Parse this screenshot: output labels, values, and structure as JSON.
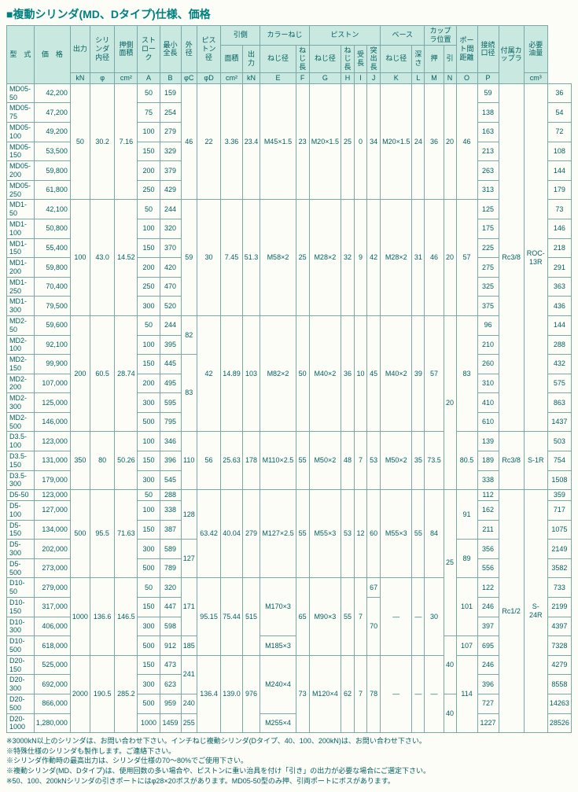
{
  "title": "■複動シリンダ(MD、Dタイプ)仕様、価格",
  "headers": {
    "r1": [
      "型　式",
      "価　格",
      "出力",
      "シリンダ内径",
      "押側面積",
      "ストローク",
      "最小全長",
      "外径",
      "ピストン径",
      "引側",
      "カラーねじ",
      "ピストン",
      "ベース",
      "カップラ位置",
      "ポート間距離",
      "接続口径",
      "付属カップラ",
      "必要油量"
    ],
    "r1sub": [
      "面積",
      "出力",
      "ねじ径",
      "ねじ長",
      "ねじ径",
      "ねじ長",
      "受長",
      "突出長",
      "ねじ径",
      "深さ",
      "押",
      "引"
    ],
    "r2": [
      "kN",
      "φ",
      "cm²",
      "A",
      "B",
      "φC",
      "φD",
      "cm²",
      "kN",
      "E",
      "F",
      "G",
      "H",
      "I",
      "J",
      "K",
      "L",
      "M",
      "N",
      "O",
      "P",
      "cm³"
    ]
  },
  "rows": [
    [
      "MD05-50",
      "42,200",
      "50",
      "30.2",
      "7.16",
      "50",
      "159",
      "46",
      "22",
      "3.36",
      "23.4",
      "M45×1.5",
      "23",
      "M20×1.5",
      "25",
      "0",
      "34",
      "M20×1.5",
      "24",
      "36",
      "20",
      "46",
      "59",
      "Rc3/8",
      "ROC-13R",
      "36"
    ],
    [
      "MD05-75",
      "47,200",
      "",
      "",
      "",
      "75",
      "254",
      "",
      "",
      "",
      "",
      "",
      "",
      "",
      "",
      "",
      "",
      "",
      "",
      "",
      "",
      "",
      "138",
      "",
      "",
      "54"
    ],
    [
      "MD05-100",
      "49,200",
      "",
      "",
      "",
      "100",
      "279",
      "",
      "",
      "",
      "",
      "",
      "",
      "",
      "",
      "",
      "",
      "",
      "",
      "",
      "",
      "",
      "163",
      "",
      "",
      "72"
    ],
    [
      "MD05-150",
      "53,500",
      "",
      "",
      "",
      "150",
      "329",
      "",
      "",
      "",
      "",
      "",
      "",
      "",
      "",
      "",
      "",
      "",
      "",
      "",
      "",
      "",
      "213",
      "",
      "",
      "108"
    ],
    [
      "MD05-200",
      "59,800",
      "",
      "",
      "",
      "200",
      "379",
      "",
      "",
      "",
      "",
      "",
      "",
      "",
      "",
      "",
      "",
      "",
      "",
      "",
      "",
      "",
      "263",
      "",
      "",
      "144"
    ],
    [
      "MD05-250",
      "61,800",
      "",
      "",
      "",
      "250",
      "429",
      "",
      "",
      "",
      "",
      "",
      "",
      "",
      "",
      "",
      "",
      "",
      "",
      "",
      "",
      "",
      "313",
      "",
      "",
      "179"
    ],
    [
      "MD1-50",
      "42,100",
      "100",
      "43.0",
      "14.52",
      "50",
      "244",
      "59",
      "30",
      "7.45",
      "51.3",
      "M58×2",
      "25",
      "M28×2",
      "32",
      "9",
      "42",
      "M28×2",
      "31",
      "46",
      "20",
      "57",
      "125",
      "",
      "",
      "73"
    ],
    [
      "MD1-100",
      "50,800",
      "",
      "",
      "",
      "100",
      "320",
      "",
      "",
      "",
      "",
      "",
      "",
      "",
      "",
      "",
      "",
      "",
      "",
      "",
      "",
      "",
      "175",
      "",
      "",
      "146"
    ],
    [
      "MD1-150",
      "55,400",
      "",
      "",
      "",
      "150",
      "370",
      "",
      "",
      "",
      "",
      "",
      "",
      "",
      "",
      "",
      "",
      "",
      "",
      "",
      "",
      "",
      "225",
      "",
      "",
      "218"
    ],
    [
      "MD1-200",
      "59,800",
      "",
      "",
      "",
      "200",
      "420",
      "",
      "",
      "",
      "",
      "",
      "",
      "",
      "",
      "",
      "",
      "",
      "",
      "",
      "",
      "",
      "275",
      "",
      "",
      "291"
    ],
    [
      "MD1-250",
      "70,400",
      "",
      "",
      "",
      "250",
      "470",
      "",
      "",
      "",
      "",
      "",
      "",
      "",
      "",
      "",
      "",
      "",
      "",
      "",
      "",
      "",
      "325",
      "",
      "",
      "363"
    ],
    [
      "MD1-300",
      "79,500",
      "",
      "",
      "",
      "300",
      "520",
      "",
      "",
      "",
      "",
      "",
      "",
      "",
      "",
      "",
      "",
      "",
      "",
      "",
      "",
      "",
      "375",
      "",
      "",
      "436"
    ],
    [
      "MD2-50",
      "59,600",
      "200",
      "60.5",
      "28.74",
      "50",
      "244",
      "82",
      "42",
      "14.89",
      "103",
      "M82×2",
      "50",
      "M40×2",
      "36",
      "10",
      "45",
      "M40×2",
      "39",
      "57",
      "20",
      "83",
      "96",
      "",
      "",
      "144"
    ],
    [
      "MD2-100",
      "92,100",
      "",
      "",
      "",
      "100",
      "395",
      "",
      "",
      "",
      "",
      "",
      "",
      "",
      "",
      "",
      "",
      "",
      "",
      "",
      "",
      "",
      "210",
      "",
      "",
      "288"
    ],
    [
      "MD2-150",
      "99,900",
      "",
      "",
      "",
      "150",
      "445",
      "83",
      "",
      "",
      "",
      "",
      "",
      "",
      "",
      "",
      "",
      "",
      "",
      "",
      "",
      "",
      "260",
      "",
      "",
      "432"
    ],
    [
      "MD2-200",
      "107,000",
      "",
      "",
      "",
      "200",
      "495",
      "",
      "",
      "",
      "",
      "",
      "",
      "",
      "",
      "",
      "",
      "",
      "",
      "",
      "",
      "",
      "310",
      "",
      "",
      "575"
    ],
    [
      "MD2-300",
      "125,000",
      "",
      "",
      "",
      "300",
      "595",
      "",
      "",
      "",
      "",
      "",
      "",
      "",
      "",
      "",
      "",
      "",
      "",
      "",
      "",
      "",
      "410",
      "",
      "",
      "863"
    ],
    [
      "MD2-500",
      "146,000",
      "",
      "",
      "",
      "500",
      "795",
      "",
      "",
      "",
      "",
      "",
      "",
      "",
      "",
      "",
      "",
      "",
      "",
      "",
      "",
      "",
      "610",
      "",
      "",
      "1437"
    ],
    [
      "D3.5-100",
      "123,000",
      "350",
      "80",
      "50.26",
      "100",
      "346",
      "110",
      "56",
      "25.63",
      "178",
      "M110×2.5",
      "55",
      "M50×2",
      "48",
      "7",
      "53",
      "M50×2",
      "35",
      "73.5",
      "",
      "80.5",
      "139",
      "Rc3/8",
      "S-1R",
      "503"
    ],
    [
      "D3.5-150",
      "131,000",
      "",
      "",
      "",
      "150",
      "396",
      "",
      "",
      "",
      "",
      "",
      "",
      "",
      "",
      "",
      "",
      "",
      "",
      "",
      "",
      "",
      "189",
      "",
      "",
      "754"
    ],
    [
      "D3.5-300",
      "179,000",
      "",
      "",
      "",
      "300",
      "545",
      "",
      "",
      "",
      "",
      "",
      "",
      "",
      "",
      "",
      "",
      "",
      "",
      "",
      "",
      "",
      "338",
      "",
      "",
      "1508"
    ],
    [
      "D5-50",
      "123,000",
      "500",
      "95.5",
      "71.63",
      "50",
      "288",
      "128",
      "63.42",
      "40.04",
      "279",
      "M127×2.5",
      "55",
      "M55×3",
      "53",
      "12",
      "60",
      "M55×3",
      "55",
      "84",
      "25",
      "91",
      "112",
      "Rc1/2",
      "S-24R",
      "359"
    ],
    [
      "D5-100",
      "127,000",
      "",
      "",
      "",
      "100",
      "338",
      "",
      "",
      "",
      "",
      "",
      "",
      "",
      "",
      "",
      "",
      "",
      "",
      "",
      "",
      "",
      "162",
      "",
      "",
      "717"
    ],
    [
      "D5-150",
      "134,000",
      "",
      "",
      "",
      "150",
      "387",
      "",
      "",
      "",
      "",
      "",
      "",
      "",
      "",
      "",
      "",
      "",
      "",
      "",
      "",
      "",
      "211",
      "",
      "",
      "1075"
    ],
    [
      "D5-300",
      "202,000",
      "",
      "",
      "",
      "300",
      "589",
      "127",
      "",
      "",
      "",
      "",
      "",
      "",
      "",
      "",
      "",
      "",
      "",
      "",
      "",
      "89",
      "356",
      "",
      "",
      "2149"
    ],
    [
      "D5-500",
      "273,000",
      "",
      "",
      "",
      "500",
      "789",
      "",
      "",
      "",
      "",
      "",
      "",
      "",
      "",
      "",
      "",
      "",
      "",
      "",
      "",
      "",
      "556",
      "",
      "",
      "3582"
    ],
    [
      "D10-50",
      "279,000",
      "1000",
      "136.6",
      "146.5",
      "50",
      "320",
      "171",
      "95.15",
      "75.44",
      "515",
      "M170×3",
      "65",
      "M90×3",
      "55",
      "7",
      "67",
      "—",
      "—",
      "30",
      "",
      "101",
      "122",
      "",
      "",
      "733"
    ],
    [
      "D10-150",
      "317,000",
      "",
      "",
      "",
      "150",
      "447",
      "",
      "",
      "",
      "",
      "",
      "",
      "",
      "",
      "",
      "70",
      "",
      "",
      "",
      "",
      "",
      "246",
      "",
      "",
      "2199"
    ],
    [
      "D10-300",
      "406,000",
      "",
      "",
      "",
      "300",
      "598",
      "",
      "",
      "",
      "",
      "",
      "",
      "",
      "",
      "",
      "",
      "",
      "",
      "",
      "",
      "",
      "397",
      "",
      "",
      "4397"
    ],
    [
      "D10-500",
      "618,000",
      "",
      "",
      "",
      "500",
      "912",
      "185",
      "",
      "",
      "",
      "M185×3",
      "",
      "",
      "",
      "",
      "",
      "",
      "",
      "",
      "40",
      "107",
      "695",
      "",
      "",
      "7328"
    ],
    [
      "D20-150",
      "525,000",
      "2000",
      "190.5",
      "285.2",
      "150",
      "473",
      "241",
      "136.4",
      "139.0",
      "976",
      "M240×4",
      "73",
      "M120×4",
      "62",
      "7",
      "78",
      "—",
      "—",
      "—",
      "",
      "114",
      "246",
      "",
      "",
      "4279"
    ],
    [
      "D20-300",
      "692,000",
      "",
      "",
      "",
      "300",
      "623",
      "",
      "",
      "",
      "",
      "",
      "",
      "",
      "",
      "",
      "",
      "",
      "",
      "",
      "",
      "",
      "396",
      "",
      "",
      "8558"
    ],
    [
      "D20-500",
      "866,000",
      "",
      "",
      "",
      "500",
      "959",
      "240",
      "",
      "",
      "",
      "",
      "",
      "",
      "",
      "",
      "",
      "",
      "",
      "",
      "40",
      "",
      "727",
      "",
      "",
      "14263"
    ],
    [
      "D20-1000",
      "1,280,000",
      "",
      "",
      "",
      "1000",
      "1459",
      "255",
      "",
      "",
      "",
      "M255×4",
      "",
      "",
      "",
      "",
      "",
      "",
      "",
      "",
      "",
      "",
      "1227",
      "",
      "",
      "28526"
    ]
  ],
  "notes": [
    "※3000kN以上のシリンダは、お問い合わせ下さい。インチねじ複動シリンダ(Dタイプ、40、100、200kN)は、お問い合わせ下さい。",
    "※特殊仕様のシリンダも製作します。ご連絡下さい。",
    "※シリンダ作動時の最高出力は、シリンダ仕様の70〜80%でご使用下さい。",
    "※複動シリンダ(MD、Dタイプ)は、使用回数の多い場合や、ピストンに重い治具を付け「引き」の出力が必要な場合にご選定下さい。",
    "※50、100、200kNシリンダの引きポートにはφ28×20ボスがあります。MD05-50型のみ押、引両ポートにボスがあります。"
  ]
}
